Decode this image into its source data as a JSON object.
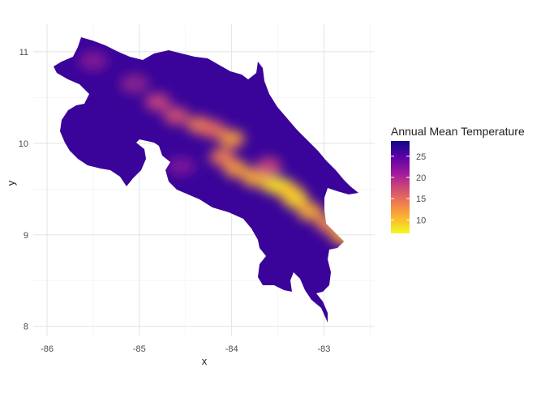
{
  "chart_data": {
    "type": "heatmap",
    "subtype": "raster-map",
    "xlabel": "x",
    "ylabel": "y",
    "x_ticks": [
      "-86",
      "-85",
      "-84",
      "-83"
    ],
    "x_tick_values": [
      -86,
      -85,
      -84,
      -83
    ],
    "y_ticks": [
      "8",
      "9",
      "10",
      "11"
    ],
    "y_tick_values": [
      8,
      9,
      10,
      11
    ],
    "xlim": [
      -86.15,
      -82.45
    ],
    "ylim": [
      7.9,
      11.3
    ],
    "grid": true,
    "legend": {
      "title": "Annual Mean Temperature",
      "position": "right",
      "ticks": [
        "10",
        "15",
        "20",
        "25"
      ],
      "tick_values": [
        10,
        15,
        20,
        25
      ],
      "range": [
        6.8,
        28.6
      ],
      "colors": [
        "#F0F921",
        "#FDB42F",
        "#ED7953",
        "#CC4778",
        "#9C179E",
        "#5C01A6",
        "#0D0887"
      ]
    },
    "hotspots": [
      {
        "x": -85.5,
        "y": 10.9,
        "value": 20
      },
      {
        "x": -85.05,
        "y": 10.65,
        "value": 19
      },
      {
        "x": -84.8,
        "y": 10.45,
        "value": 18
      },
      {
        "x": -84.6,
        "y": 10.3,
        "value": 17
      },
      {
        "x": -84.35,
        "y": 10.2,
        "value": 14
      },
      {
        "x": -84.2,
        "y": 10.15,
        "value": 15
      },
      {
        "x": -84.0,
        "y": 10.05,
        "value": 12
      },
      {
        "x": -84.1,
        "y": 9.85,
        "value": 14
      },
      {
        "x": -83.95,
        "y": 9.72,
        "value": 12
      },
      {
        "x": -83.75,
        "y": 9.62,
        "value": 11
      },
      {
        "x": -83.55,
        "y": 9.55,
        "value": 9
      },
      {
        "x": -83.45,
        "y": 9.52,
        "value": 8
      },
      {
        "x": -83.35,
        "y": 9.45,
        "value": 10
      },
      {
        "x": -83.3,
        "y": 9.38,
        "value": 9
      },
      {
        "x": -83.15,
        "y": 9.25,
        "value": 11
      },
      {
        "x": -82.95,
        "y": 9.12,
        "value": 13
      },
      {
        "x": -82.8,
        "y": 9.0,
        "value": 11
      },
      {
        "x": -82.72,
        "y": 8.96,
        "value": 12
      },
      {
        "x": -84.55,
        "y": 9.75,
        "value": 21
      },
      {
        "x": -83.6,
        "y": 9.75,
        "value": 18
      }
    ]
  }
}
